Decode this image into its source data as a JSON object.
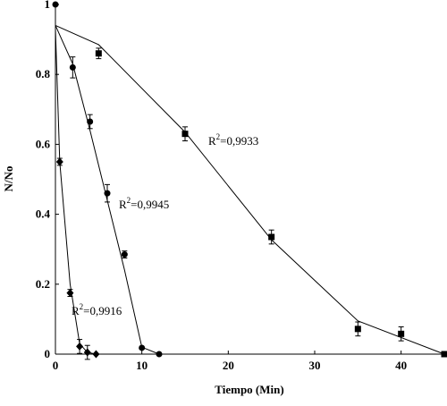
{
  "chart_data": {
    "type": "scatter",
    "x_label": "Tiempo (Min)",
    "y_label": "N/No",
    "xlim": [
      0,
      45
    ],
    "ylim": [
      0,
      1
    ],
    "xticks": [
      0,
      10,
      20,
      30,
      40
    ],
    "yticks": [
      0,
      0.2,
      0.4,
      0.6,
      0.8,
      1
    ],
    "series": [
      {
        "marker": "square",
        "color": "#000000",
        "x": [
          5,
          15,
          25,
          35,
          40,
          45
        ],
        "values": [
          0.86,
          0.63,
          0.335,
          0.072,
          0.058,
          0
        ],
        "errors": [
          0.015,
          0.02,
          0.02,
          0.02,
          0.02,
          0
        ]
      },
      {
        "marker": "circle",
        "color": "#000000",
        "x": [
          0,
          2,
          4,
          6,
          8,
          10,
          12
        ],
        "values": [
          1,
          0.82,
          0.665,
          0.46,
          0.285,
          0.018,
          0
        ],
        "errors": [
          0,
          0.03,
          0.02,
          0.025,
          0.01,
          0,
          0
        ]
      },
      {
        "marker": "diamond",
        "color": "#000000",
        "x": [
          0.5,
          1.7,
          2.8,
          3.7,
          4.7
        ],
        "values": [
          0.55,
          0.175,
          0.022,
          0.005,
          0
        ],
        "errors": [
          0.01,
          0.01,
          0.02,
          0.02,
          0
        ]
      }
    ],
    "fits": [
      {
        "x": [
          0,
          5,
          15,
          25,
          35,
          45
        ],
        "values": [
          0.94,
          0.885,
          0.635,
          0.327,
          0.095,
          0
        ]
      },
      {
        "x": [
          0,
          2,
          4,
          6,
          8,
          10,
          12
        ],
        "values": [
          0.94,
          0.83,
          0.64,
          0.44,
          0.24,
          0.02,
          0
        ]
      },
      {
        "x": [
          0,
          0.5,
          1.7,
          2.8,
          3.7,
          4.7
        ],
        "values": [
          0.93,
          0.55,
          0.2,
          0.03,
          0.005,
          0
        ]
      }
    ],
    "annotations": [
      {
        "base": "R",
        "sup": "2",
        "text": "=0,9933"
      },
      {
        "base": "R",
        "sup": "2",
        "text": "=0,9945"
      },
      {
        "base": "R",
        "sup": "2",
        "text": "=0,9916"
      }
    ]
  }
}
